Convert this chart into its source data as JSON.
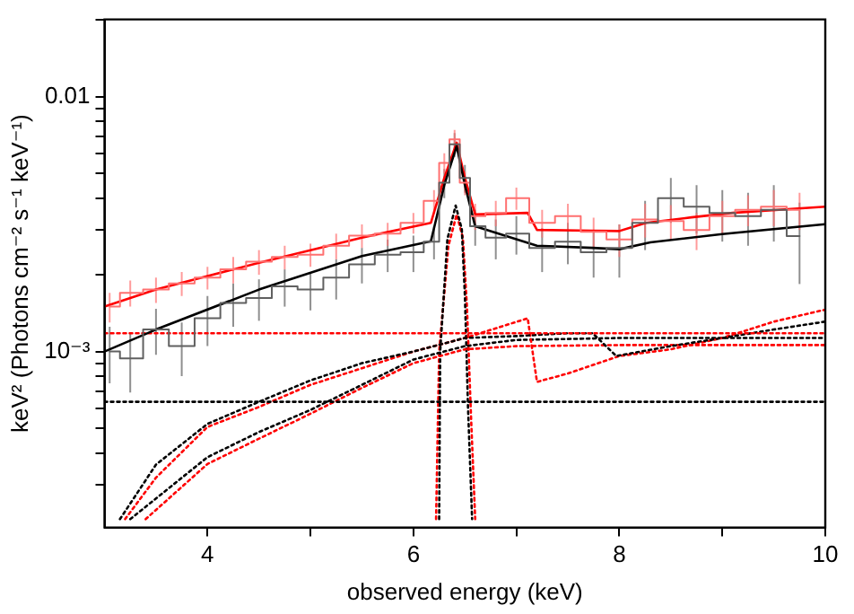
{
  "chart_data": {
    "type": "line",
    "xlabel": "observed energy (keV)",
    "ylabel": "keV² (Photons cm⁻² s⁻¹ keV⁻¹)",
    "xlim": [
      3,
      10
    ],
    "xticks": [
      4,
      {
        "value": 5,
        "label": null
      },
      6,
      {
        "value": 7,
        "label": null
      },
      8,
      {
        "value": 9,
        "label": null
      },
      10
    ],
    "ylim": [
      0.000204,
      0.0201
    ],
    "log": "y",
    "yticks": [
      {
        "value": 0.0003,
        "label": null
      },
      {
        "value": 0.0004,
        "label": null
      },
      {
        "value": 0.0005,
        "label": null
      },
      {
        "value": 0.0006,
        "label": null
      },
      {
        "value": 0.0007,
        "label": null
      },
      {
        "value": 0.0008,
        "label": null
      },
      {
        "value": 0.0009,
        "label": null
      },
      {
        "value": 0.001,
        "label": "10⁻³"
      },
      {
        "value": 0.002,
        "label": null
      },
      {
        "value": 0.003,
        "label": null
      },
      {
        "value": 0.004,
        "label": null
      },
      {
        "value": 0.005,
        "label": null
      },
      {
        "value": 0.006,
        "label": null
      },
      {
        "value": 0.007,
        "label": null
      },
      {
        "value": 0.008,
        "label": null
      },
      {
        "value": 0.009,
        "label": null
      },
      0.01,
      {
        "value": 0.02,
        "label": null
      }
    ],
    "grid": false,
    "legend": false,
    "marker": "none",
    "series": [
      {
        "type": "step",
        "color": "#606060",
        "x": [
          3.05,
          3.25,
          3.5,
          3.75,
          4.0,
          4.25,
          4.5,
          4.75,
          5.0,
          5.25,
          5.5,
          5.75,
          6.0,
          6.2,
          6.3,
          6.4,
          6.5,
          6.6,
          6.8,
          7.0,
          7.25,
          7.5,
          7.75,
          8.0,
          8.25,
          8.5,
          8.75,
          9.0,
          9.25,
          9.5,
          9.75
        ],
        "values": [
          0.001,
          0.00094,
          0.00122,
          0.00105,
          0.00135,
          0.00155,
          0.00162,
          0.0018,
          0.00175,
          0.00195,
          0.0022,
          0.0024,
          0.00245,
          0.0027,
          0.0046,
          0.0065,
          0.0048,
          0.0031,
          0.0028,
          0.0029,
          0.00255,
          0.0027,
          0.00245,
          0.00255,
          0.0032,
          0.004,
          0.0037,
          0.0035,
          0.0034,
          0.0036,
          0.00284
        ],
        "errors": [
          0.00025,
          0.00025,
          0.00025,
          0.00025,
          0.0003,
          0.0003,
          0.0003,
          0.0003,
          0.0003,
          0.00035,
          0.00035,
          0.00035,
          0.0004,
          0.0004,
          0.0006,
          0.0007,
          0.0006,
          0.0005,
          0.0005,
          0.0005,
          0.0005,
          0.0005,
          0.0005,
          0.0006,
          0.0007,
          0.0008,
          0.0008,
          0.0008,
          0.0008,
          0.0009,
          0.001
        ]
      },
      {
        "type": "step",
        "color": "#ff7070",
        "x": [
          3.05,
          3.25,
          3.5,
          3.75,
          4.0,
          4.25,
          4.5,
          4.75,
          5.0,
          5.25,
          5.5,
          5.75,
          6.0,
          6.2,
          6.3,
          6.4,
          6.5,
          6.6,
          6.8,
          7.0,
          7.25,
          7.5,
          7.75,
          8.0,
          8.25,
          8.5,
          8.75,
          9.0,
          9.25,
          9.5,
          9.75
        ],
        "values": [
          0.0015,
          0.0017,
          0.00175,
          0.00185,
          0.00195,
          0.0021,
          0.00225,
          0.00235,
          0.0024,
          0.0026,
          0.00285,
          0.0029,
          0.0032,
          0.0039,
          0.0055,
          0.0068,
          0.0046,
          0.0034,
          0.0035,
          0.004,
          0.0032,
          0.0034,
          0.00295,
          0.00275,
          0.0033,
          0.00325,
          0.003,
          0.0034,
          0.0036,
          0.0037,
          0.0036
        ],
        "errors": [
          0.0002,
          0.0002,
          0.0002,
          0.0002,
          0.0002,
          0.00025,
          0.00025,
          0.00025,
          0.00025,
          0.0003,
          0.0003,
          0.0003,
          0.0003,
          0.0004,
          0.0005,
          0.0006,
          0.0005,
          0.0004,
          0.0004,
          0.0004,
          0.0004,
          0.0004,
          0.0004,
          0.0004,
          0.0005,
          0.0005,
          0.0005,
          0.0005,
          0.0005,
          0.0006,
          0.0006
        ]
      },
      {
        "type": "line",
        "color": "#000000",
        "x": [
          3.0,
          3.5,
          4.5,
          5.5,
          6.17,
          6.3,
          6.42,
          6.5,
          6.6,
          7.2,
          7.74,
          8.0,
          8.3,
          9.0,
          10.0
        ],
        "values": [
          0.001,
          0.00122,
          0.00175,
          0.00237,
          0.00271,
          0.0045,
          0.0064,
          0.0045,
          0.0031,
          0.0026,
          0.00255,
          0.00252,
          0.00268,
          0.00289,
          0.00316
        ]
      },
      {
        "type": "line",
        "color": "#ff0000",
        "x": [
          3.0,
          3.5,
          4.5,
          5.5,
          6.17,
          6.3,
          6.42,
          6.5,
          6.6,
          7.11,
          7.2,
          7.74,
          8.0,
          8.26,
          8.7,
          9.1,
          10.0
        ],
        "values": [
          0.0015,
          0.00175,
          0.00223,
          0.0028,
          0.0032,
          0.0048,
          0.0066,
          0.0048,
          0.00345,
          0.0035,
          0.003,
          0.00298,
          0.00297,
          0.0032,
          0.00336,
          0.0035,
          0.0037
        ]
      },
      {
        "type": "line",
        "line_style": "dotted",
        "color": "#000000",
        "x": [
          3.0,
          10.0
        ],
        "values": [
          0.000635,
          0.000635
        ]
      },
      {
        "type": "line",
        "line_style": "dotted",
        "color": "#ff0000",
        "x": [
          3.0,
          10.0
        ],
        "values": [
          0.00118,
          0.00118
        ]
      },
      {
        "type": "line",
        "line_style": "dotted",
        "color": "#000000",
        "x": [
          3.15,
          3.5,
          4.0,
          4.5,
          5.0,
          5.5,
          6.0,
          6.5,
          7.0,
          7.5,
          7.74,
          7.97,
          8.5,
          9.0,
          9.5,
          10.0
        ],
        "values": [
          0.00022,
          0.00036,
          0.00052,
          0.000635,
          0.00077,
          0.0009,
          0.001,
          0.00113,
          0.00115,
          0.00118,
          0.00118,
          0.00096,
          0.00105,
          0.00113,
          0.00122,
          0.00131
        ]
      },
      {
        "type": "line",
        "line_style": "dotted",
        "color": "#ff0000",
        "x": [
          3.2,
          3.5,
          4.0,
          4.5,
          5.0,
          5.5,
          6.0,
          6.5,
          7.11,
          7.2,
          7.5,
          8.0,
          8.5,
          9.0,
          9.5,
          10.0
        ],
        "values": [
          0.00022,
          0.00032,
          0.000506,
          0.000606,
          0.00074,
          0.00086,
          0.001,
          0.00113,
          0.00135,
          0.00076,
          0.00082,
          0.00096,
          0.00102,
          0.00113,
          0.00131,
          0.00146
        ]
      },
      {
        "type": "line",
        "line_style": "dotted",
        "color": "#000000",
        "x": [
          3.25,
          4.0,
          4.5,
          5.0,
          5.5,
          6.0,
          6.5,
          7.0,
          8.0,
          9.0,
          10.0
        ],
        "values": [
          0.00022,
          0.000385,
          0.000483,
          0.00059,
          0.00074,
          0.00093,
          0.00105,
          0.00111,
          0.00113,
          0.00113,
          0.00113
        ]
      },
      {
        "type": "line",
        "line_style": "dotted",
        "color": "#ff0000",
        "x": [
          3.4,
          4.0,
          4.5,
          5.0,
          5.5,
          6.0,
          6.5,
          7.0,
          8.0,
          9.0,
          10.0
        ],
        "values": [
          0.00022,
          0.000362,
          0.000455,
          0.00057,
          0.00072,
          0.0009,
          0.00102,
          0.00105,
          0.00106,
          0.00106,
          0.00106
        ]
      },
      {
        "type": "line",
        "line_style": "dotted",
        "color": "#000000",
        "x": [
          6.25,
          6.26,
          6.33,
          6.41,
          6.47,
          6.5,
          6.53,
          6.57
        ],
        "values": [
          0.00022,
          0.001,
          0.00276,
          0.00374,
          0.00302,
          0.00165,
          0.000606,
          0.00022
        ]
      },
      {
        "type": "line",
        "line_style": "dotted",
        "color": "#ff0000",
        "x": [
          6.22,
          6.25,
          6.34,
          6.42,
          6.48,
          6.52,
          6.56,
          6.6
        ],
        "values": [
          0.00022,
          0.001,
          0.0026,
          0.00345,
          0.0028,
          0.0015,
          0.00055,
          0.00022
        ]
      }
    ]
  }
}
